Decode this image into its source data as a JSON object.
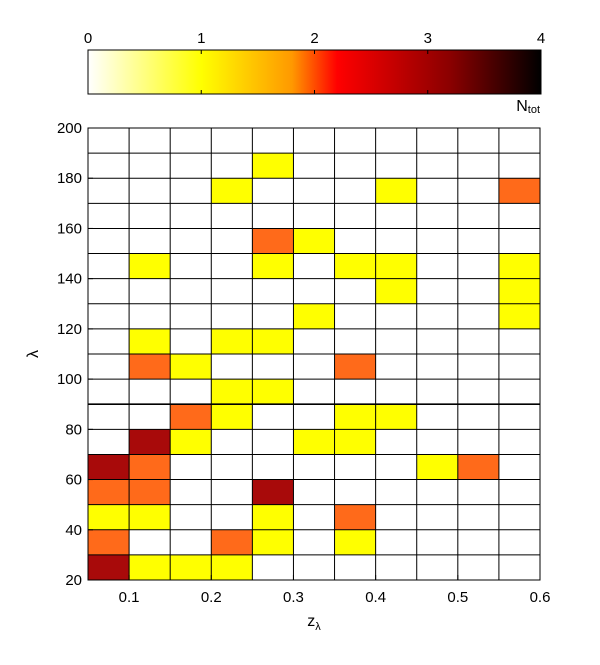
{
  "chart_data": {
    "type": "heatmap",
    "xlabel_main": "z",
    "xlabel_sub": "λ",
    "ylabel": "λ",
    "x_bins": [
      0.05,
      0.1,
      0.15,
      0.2,
      0.25,
      0.3,
      0.35,
      0.4,
      0.45,
      0.5,
      0.55,
      0.6
    ],
    "y_bins": [
      20,
      30,
      40,
      50,
      60,
      70,
      80,
      90,
      100,
      110,
      120,
      130,
      140,
      150,
      160,
      170,
      180,
      190,
      200
    ],
    "x_ticks": [
      0.1,
      0.2,
      0.3,
      0.4,
      0.5,
      0.6
    ],
    "x_tick_labels": [
      "0.1",
      "0.2",
      "0.3",
      "0.4",
      "0.5",
      "0.6"
    ],
    "y_ticks": [
      20,
      40,
      60,
      80,
      100,
      120,
      140,
      160,
      180,
      200
    ],
    "y_tick_labels": [
      "20",
      "40",
      "60",
      "80",
      "100",
      "120",
      "140",
      "160",
      "180",
      "200"
    ],
    "xlim": [
      0.05,
      0.6
    ],
    "ylim": [
      20,
      200
    ],
    "grid": true,
    "counts_note": "rows listed from lambda 20-30 upward; columns z from 0.05-0.10 to 0.55-0.60",
    "counts": [
      [
        3,
        1,
        1,
        1,
        0,
        0,
        0,
        0,
        0,
        0,
        0
      ],
      [
        2,
        0,
        0,
        2,
        1,
        0,
        1,
        0,
        0,
        0,
        0
      ],
      [
        1,
        1,
        0,
        0,
        1,
        0,
        2,
        0,
        0,
        0,
        0
      ],
      [
        2,
        2,
        0,
        0,
        3,
        0,
        0,
        0,
        0,
        0,
        0
      ],
      [
        3,
        2,
        0,
        0,
        0,
        0,
        0,
        0,
        1,
        2,
        0
      ],
      [
        0,
        3,
        1,
        0,
        0,
        1,
        1,
        0,
        0,
        0,
        0
      ],
      [
        0,
        0,
        2,
        1,
        0,
        0,
        1,
        1,
        0,
        0,
        0
      ],
      [
        0,
        0,
        0,
        1,
        1,
        0,
        0,
        0,
        0,
        0,
        0
      ],
      [
        0,
        2,
        1,
        0,
        0,
        0,
        2,
        0,
        0,
        0,
        0
      ],
      [
        0,
        1,
        0,
        1,
        1,
        0,
        0,
        0,
        0,
        0,
        0
      ],
      [
        0,
        0,
        0,
        0,
        0,
        1,
        0,
        0,
        0,
        0,
        1
      ],
      [
        0,
        0,
        0,
        0,
        0,
        0,
        0,
        1,
        0,
        0,
        1
      ],
      [
        0,
        1,
        0,
        0,
        1,
        0,
        1,
        1,
        0,
        0,
        1
      ],
      [
        0,
        0,
        0,
        0,
        2,
        1,
        0,
        0,
        0,
        0,
        0
      ],
      [
        0,
        0,
        0,
        0,
        0,
        0,
        0,
        0,
        0,
        0,
        0
      ],
      [
        0,
        0,
        0,
        1,
        0,
        0,
        0,
        1,
        0,
        0,
        2
      ],
      [
        0,
        0,
        0,
        0,
        1,
        0,
        0,
        0,
        0,
        0,
        0
      ],
      [
        0,
        0,
        0,
        0,
        0,
        0,
        0,
        0,
        0,
        0,
        0
      ]
    ],
    "colorbar": {
      "range": [
        0,
        4
      ],
      "ticks": [
        0,
        1,
        2,
        3,
        4
      ],
      "tick_labels": [
        "0",
        "1",
        "2",
        "3",
        "4"
      ],
      "label_main": "N",
      "label_sub": "tot",
      "colormap": "hot (reversed)"
    },
    "colors": {
      "0": "#ffffff",
      "1": "#ffff00",
      "2": "#ff6a1a",
      "3": "#a80a0a",
      "grid": "#000000"
    }
  }
}
